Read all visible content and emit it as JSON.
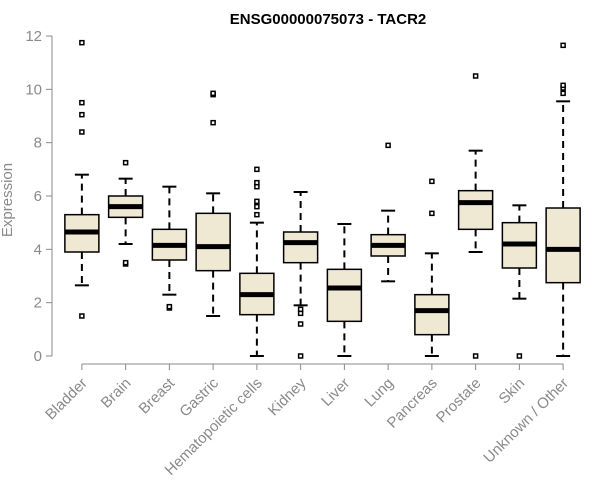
{
  "chart_data": {
    "type": "boxplot",
    "title": "ENSG00000075073 - TACR2",
    "ylabel": "Expression",
    "xlabel": "",
    "ylim": [
      0,
      12
    ],
    "yticks": [
      0,
      2,
      4,
      6,
      8,
      10,
      12
    ],
    "grid": false,
    "colors": {
      "box_fill": "#efe8d2",
      "stroke": "#000000",
      "axis": "#8a8a8a"
    },
    "categories": [
      "Bladder",
      "Brain",
      "Breast",
      "Gastric",
      "Hematopoietic cells",
      "Kidney",
      "Liver",
      "Lung",
      "Pancreas",
      "Prostate",
      "Skin",
      "Unknown / Other"
    ],
    "boxes": [
      {
        "q1": 3.9,
        "median": 4.65,
        "q3": 5.3,
        "whisker_low": 2.65,
        "whisker_high": 6.8,
        "outliers": [
          1.5,
          8.4,
          9.05,
          9.5,
          11.75
        ]
      },
      {
        "q1": 5.2,
        "median": 5.6,
        "q3": 6.0,
        "whisker_low": 4.2,
        "whisker_high": 6.65,
        "outliers": [
          3.45,
          3.5,
          7.25
        ]
      },
      {
        "q1": 3.6,
        "median": 4.15,
        "q3": 4.75,
        "whisker_low": 2.3,
        "whisker_high": 6.35,
        "outliers": [
          1.8,
          1.85
        ]
      },
      {
        "q1": 3.2,
        "median": 4.1,
        "q3": 5.35,
        "whisker_low": 1.5,
        "whisker_high": 6.1,
        "outliers": [
          8.75,
          9.8,
          9.85
        ]
      },
      {
        "q1": 1.55,
        "median": 2.3,
        "q3": 3.1,
        "whisker_low": 0.0,
        "whisker_high": 5.0,
        "outliers": [
          5.3,
          5.6,
          5.8,
          6.35,
          6.5,
          7.0
        ]
      },
      {
        "q1": 3.5,
        "median": 4.25,
        "q3": 4.65,
        "whisker_low": 1.9,
        "whisker_high": 6.15,
        "outliers": [
          0.0,
          1.2,
          1.6,
          1.75
        ]
      },
      {
        "q1": 1.3,
        "median": 2.55,
        "q3": 3.25,
        "whisker_low": 0.0,
        "whisker_high": 4.95,
        "outliers": []
      },
      {
        "q1": 3.75,
        "median": 4.15,
        "q3": 4.55,
        "whisker_low": 2.8,
        "whisker_high": 5.45,
        "outliers": [
          7.9
        ]
      },
      {
        "q1": 0.8,
        "median": 1.7,
        "q3": 2.3,
        "whisker_low": 0.0,
        "whisker_high": 3.85,
        "outliers": [
          5.35,
          6.55
        ]
      },
      {
        "q1": 4.75,
        "median": 5.75,
        "q3": 6.2,
        "whisker_low": 3.9,
        "whisker_high": 7.7,
        "outliers": [
          0.0,
          10.5
        ]
      },
      {
        "q1": 3.3,
        "median": 4.2,
        "q3": 5.0,
        "whisker_low": 2.15,
        "whisker_high": 5.65,
        "outliers": [
          0.0
        ]
      },
      {
        "q1": 2.75,
        "median": 4.0,
        "q3": 5.55,
        "whisker_low": 0.0,
        "whisker_high": 9.55,
        "outliers": [
          9.85,
          10.05,
          10.15,
          11.65
        ]
      }
    ]
  }
}
